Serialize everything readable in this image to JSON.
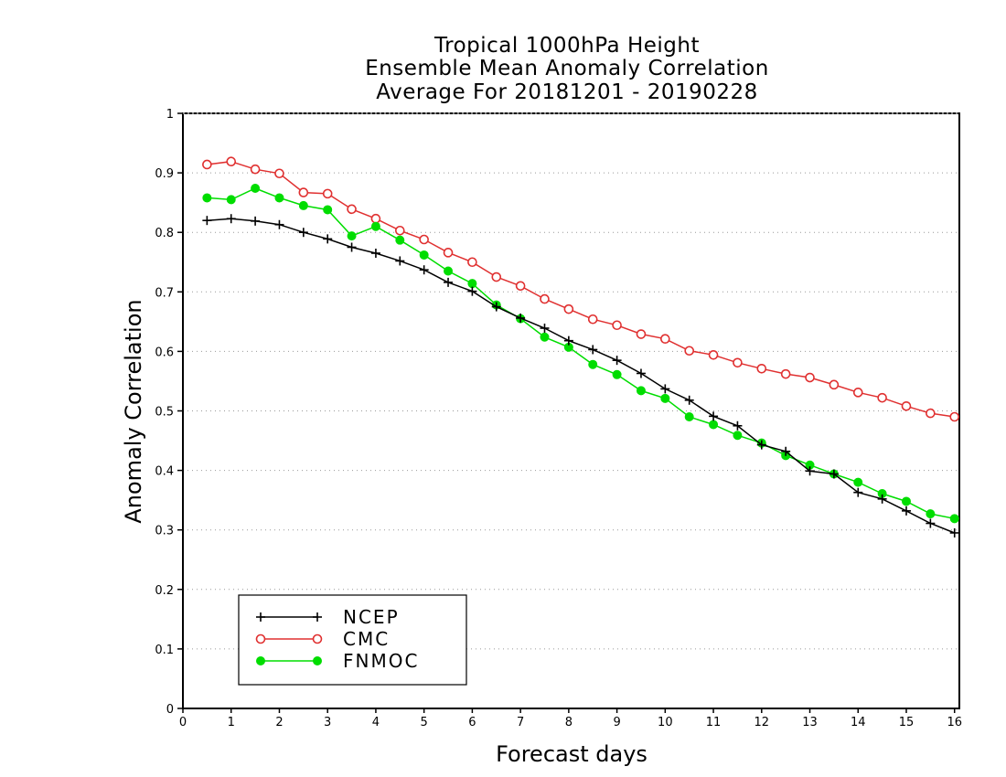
{
  "chart_data": {
    "type": "line",
    "title_lines": [
      "Tropical 1000hPa Height",
      "Ensemble Mean Anomaly Correlation",
      "Average For 20181201 - 20190228"
    ],
    "xlabel": "Forecast days",
    "ylabel": "Anomaly Correlation",
    "xlim": [
      0,
      16.1
    ],
    "ylim": [
      0,
      1
    ],
    "xticks": [
      0,
      1,
      2,
      3,
      4,
      5,
      6,
      7,
      8,
      9,
      10,
      11,
      12,
      13,
      14,
      15,
      16
    ],
    "yticks": [
      0,
      0.1,
      0.2,
      0.3,
      0.4,
      0.5,
      0.6,
      0.7,
      0.8,
      0.9,
      1
    ],
    "ytick_labels": [
      "0",
      "0.1",
      "0.2",
      "0.3",
      "0.4",
      "0.5",
      "0.6",
      "0.7",
      "0.8",
      "0.9",
      "1"
    ],
    "grid": true,
    "legend_position": "bottom-left",
    "x": [
      0.5,
      1,
      1.5,
      2,
      2.5,
      3,
      3.5,
      4,
      4.5,
      5,
      5.5,
      6,
      6.5,
      7,
      7.5,
      8,
      8.5,
      9,
      9.5,
      10,
      10.5,
      11,
      11.5,
      12,
      12.5,
      13,
      13.5,
      14,
      14.5,
      15,
      15.5,
      16
    ],
    "series": [
      {
        "name": "NCEP",
        "color": "#000000",
        "marker": "plus",
        "values": [
          0.82,
          0.823,
          0.819,
          0.813,
          0.8,
          0.789,
          0.775,
          0.765,
          0.752,
          0.737,
          0.716,
          0.701,
          0.675,
          0.656,
          0.639,
          0.618,
          0.603,
          0.585,
          0.563,
          0.537,
          0.518,
          0.491,
          0.475,
          0.443,
          0.432,
          0.399,
          0.394,
          0.363,
          0.352,
          0.332,
          0.311,
          0.295
        ]
      },
      {
        "name": "CMC",
        "color": "#e03030",
        "marker": "open-circle",
        "values": [
          0.914,
          0.919,
          0.906,
          0.899,
          0.867,
          0.865,
          0.839,
          0.823,
          0.803,
          0.788,
          0.766,
          0.75,
          0.725,
          0.71,
          0.688,
          0.671,
          0.654,
          0.644,
          0.629,
          0.621,
          0.601,
          0.594,
          0.581,
          0.571,
          0.562,
          0.556,
          0.544,
          0.531,
          0.522,
          0.508,
          0.496,
          0.49
        ]
      },
      {
        "name": "FNMOC",
        "color": "#00dd00",
        "marker": "filled-circle",
        "values": [
          0.858,
          0.855,
          0.874,
          0.858,
          0.845,
          0.838,
          0.794,
          0.81,
          0.787,
          0.762,
          0.735,
          0.714,
          0.678,
          0.655,
          0.624,
          0.607,
          0.578,
          0.561,
          0.534,
          0.521,
          0.49,
          0.477,
          0.459,
          0.446,
          0.425,
          0.409,
          0.394,
          0.38,
          0.361,
          0.348,
          0.327,
          0.319
        ]
      }
    ]
  }
}
